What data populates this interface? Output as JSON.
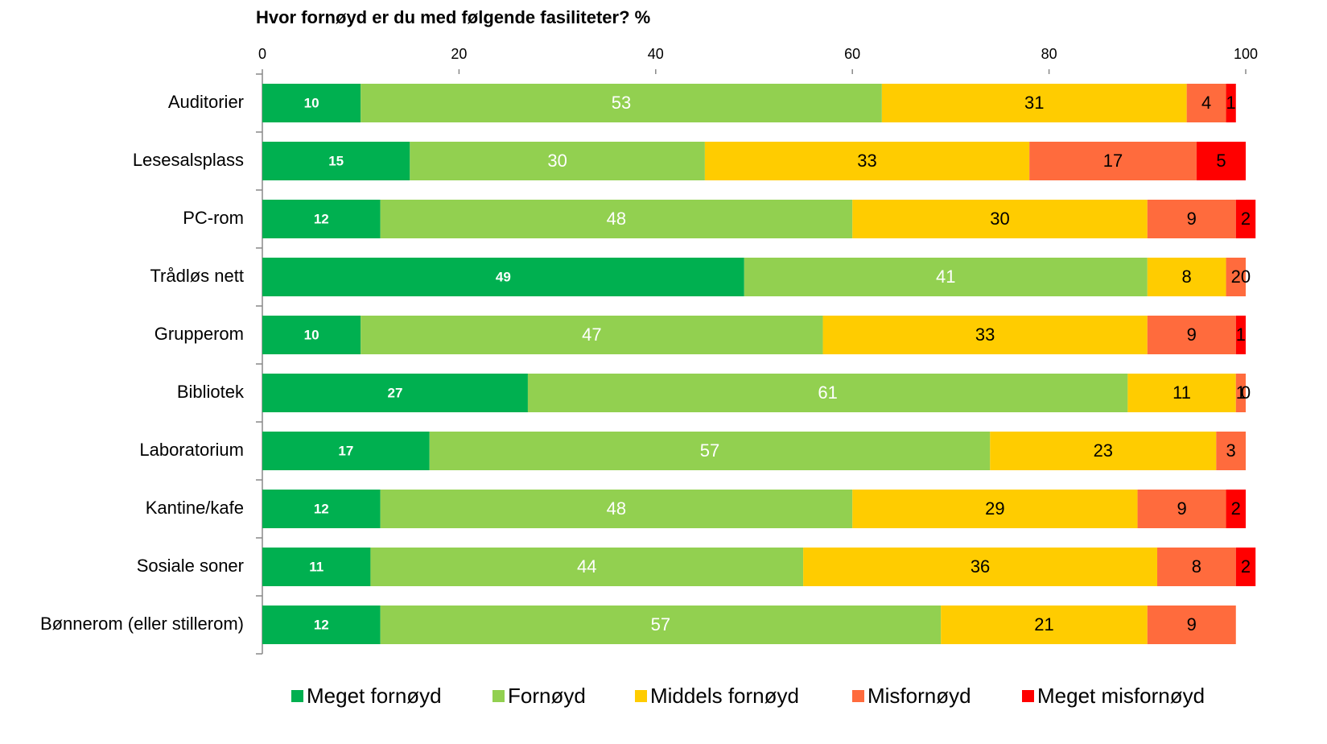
{
  "chart_data": {
    "type": "stacked_bar_horizontal",
    "title": "Hvor fornøyd er du med følgende fasiliteter? %",
    "categories": [
      "Auditorier",
      "Lesesalsplass",
      "PC-rom",
      "Trådløs nett",
      "Grupperom",
      "Bibliotek",
      "Laboratorium",
      "Kantine/kafe",
      "Sosiale soner",
      "Bønnerom (eller stillerom)"
    ],
    "series": [
      {
        "name": "Meget fornøyd",
        "color": "#00b050",
        "values": [
          10,
          15,
          12,
          49,
          10,
          27,
          17,
          12,
          11,
          12
        ]
      },
      {
        "name": "Fornøyd",
        "color": "#92d050",
        "values": [
          53,
          30,
          48,
          41,
          47,
          61,
          57,
          48,
          44,
          57
        ]
      },
      {
        "name": "Middels fornøyd",
        "color": "#ffcc00",
        "values": [
          31,
          33,
          30,
          8,
          33,
          11,
          23,
          29,
          36,
          21
        ]
      },
      {
        "name": "Misfornøyd",
        "color": "#ff6b3d",
        "values": [
          4,
          17,
          9,
          2,
          9,
          1,
          3,
          9,
          8,
          9
        ]
      },
      {
        "name": "Meget misfornøyd",
        "color": "#ff0000",
        "values": [
          1,
          5,
          2,
          0,
          1,
          0,
          null,
          2,
          2,
          null
        ]
      }
    ],
    "xlim": [
      0,
      100
    ],
    "xticks": [
      0,
      20,
      40,
      60,
      80,
      100
    ],
    "legend": "bottom"
  }
}
